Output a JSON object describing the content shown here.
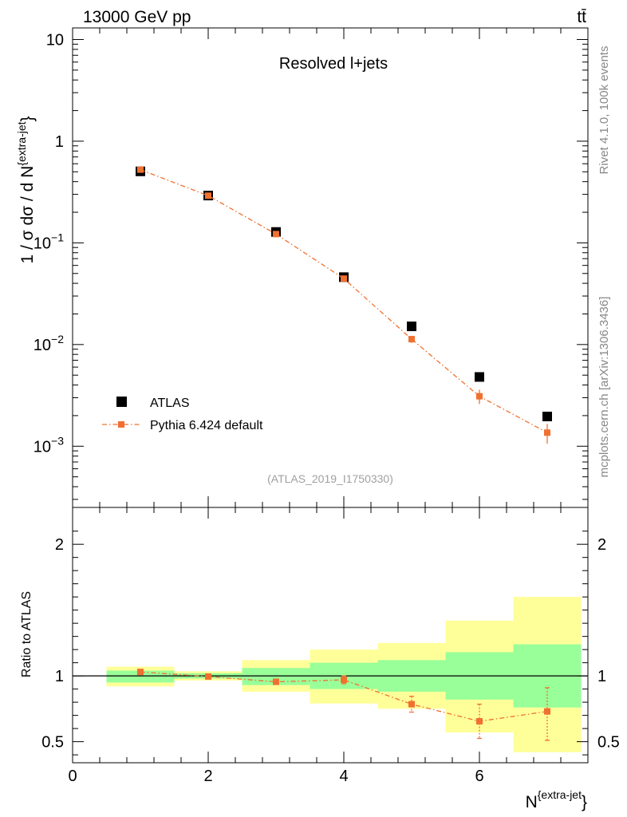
{
  "header": {
    "energy_label": "13000 GeV pp",
    "process_label": "tt̄"
  },
  "side_labels": {
    "rivet": "Rivet 4.1.0,  100k events",
    "mcplots": "mcplots.cern.ch [arXiv:1306.3436]"
  },
  "colors": {
    "atlas": "#000000",
    "pythia": "#f07030",
    "band_inner": "#99ff99",
    "band_outer": "#ffff99"
  },
  "chart_data": [
    {
      "type": "scatter",
      "panel": "main",
      "title": "Resolved l+jets",
      "watermark": "(ATLAS_2019_I1750330)",
      "xlabel": {
        "base": "N",
        "sup": "{extra-jet",
        "suffix": "}"
      },
      "ylabel": {
        "text": "1 / σ dσ / d N",
        "sup": "{extra-jet",
        "suffix": "}"
      },
      "yscale": "log",
      "xlim": [
        0,
        7.6
      ],
      "ylim": [
        0.00025,
        13
      ],
      "y_ticks": [
        {
          "value": 10,
          "label": "10"
        },
        {
          "value": 1,
          "label": "1"
        },
        {
          "value": 0.1,
          "mant": "10",
          "exp": "−1"
        },
        {
          "value": 0.01,
          "mant": "10",
          "exp": "−2"
        },
        {
          "value": 0.001,
          "mant": "10",
          "exp": "−3"
        }
      ],
      "legend": {
        "position": "bottom-left",
        "entries": [
          {
            "name": "ATLAS",
            "marker": "square-filled"
          },
          {
            "name": "Pythia 6.424 default",
            "marker": "square-line"
          }
        ]
      },
      "series": [
        {
          "name": "ATLAS",
          "x": [
            1,
            2,
            3,
            4,
            5,
            6,
            7
          ],
          "y": [
            0.505,
            0.292,
            0.128,
            0.046,
            0.0151,
            0.0048,
            0.00196
          ]
        },
        {
          "name": "Pythia 6.424 default",
          "x": [
            1,
            2,
            3,
            4,
            5,
            6,
            7
          ],
          "y": [
            0.525,
            0.291,
            0.122,
            0.0445,
            0.0113,
            0.0031,
            0.00136
          ],
          "yerr": [
            0.01,
            0.004,
            0.002,
            0.0008,
            0.0009,
            0.0005,
            0.0003
          ]
        }
      ]
    },
    {
      "type": "scatter",
      "panel": "ratio",
      "ylabel": "Ratio to ATLAS",
      "xlim": [
        0,
        7.6
      ],
      "ylim": [
        0.34,
        2.28
      ],
      "x_ticks": [
        0,
        2,
        4,
        6
      ],
      "y_ticks": [
        0.5,
        1,
        2
      ],
      "reference": 1,
      "bands": [
        {
          "x0": 0.5,
          "x1": 1.5,
          "inner": [
            0.95,
            1.04
          ],
          "outer": [
            0.92,
            1.07
          ]
        },
        {
          "x0": 1.5,
          "x1": 2.5,
          "inner": [
            0.98,
            1.02
          ],
          "outer": [
            0.965,
            1.035
          ]
        },
        {
          "x0": 2.5,
          "x1": 3.5,
          "inner": [
            0.93,
            1.06
          ],
          "outer": [
            0.88,
            1.12
          ]
        },
        {
          "x0": 3.5,
          "x1": 4.5,
          "inner": [
            0.9,
            1.1
          ],
          "outer": [
            0.79,
            1.2
          ]
        },
        {
          "x0": 4.5,
          "x1": 5.5,
          "inner": [
            0.88,
            1.12
          ],
          "outer": [
            0.75,
            1.25
          ]
        },
        {
          "x0": 5.5,
          "x1": 6.5,
          "inner": [
            0.82,
            1.18
          ],
          "outer": [
            0.57,
            1.42
          ]
        },
        {
          "x0": 6.5,
          "x1": 7.5,
          "inner": [
            0.76,
            1.24
          ],
          "outer": [
            0.42,
            1.6
          ]
        }
      ],
      "series": [
        {
          "name": "Pythia 6.424 default",
          "x": [
            1,
            2,
            3,
            4,
            5,
            6,
            7
          ],
          "y": [
            1.03,
            0.995,
            0.955,
            0.97,
            0.785,
            0.655,
            0.73
          ],
          "yerr_lo": [
            0.015,
            0.01,
            0.02,
            0.03,
            0.06,
            0.13,
            0.22
          ],
          "yerr_hi": [
            0.015,
            0.01,
            0.02,
            0.03,
            0.06,
            0.13,
            0.18
          ]
        }
      ]
    }
  ]
}
